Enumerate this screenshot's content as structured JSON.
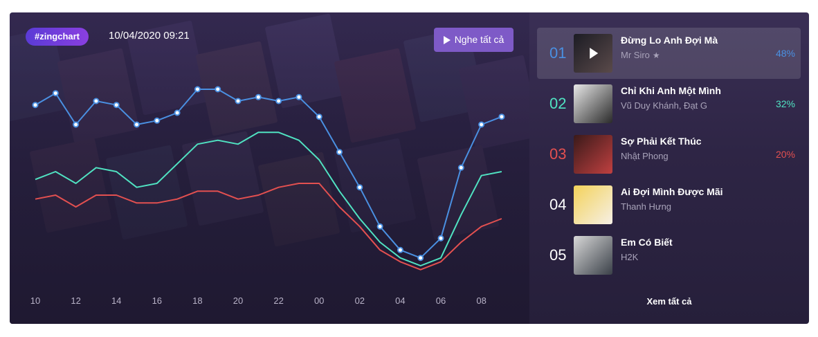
{
  "header": {
    "brand": "#zingchart",
    "datetime": "10/04/2020 09:21",
    "play_all_label": "Nghe tất cả"
  },
  "colors": {
    "series1": "#4a90e2",
    "series2": "#50e3c2",
    "series3": "#e35050"
  },
  "chart_data": {
    "type": "line",
    "x_ticks": [
      "10",
      "12",
      "14",
      "16",
      "18",
      "20",
      "22",
      "00",
      "02",
      "04",
      "06",
      "08"
    ],
    "series": [
      {
        "values": [
          77,
          80,
          72,
          78,
          77,
          72,
          73,
          75,
          81,
          81,
          78,
          79,
          78,
          79,
          74,
          65,
          56,
          46,
          40,
          38,
          43,
          61,
          72,
          74
        ],
        "color": "#4a90e2"
      },
      {
        "values": [
          58,
          60,
          57,
          61,
          60,
          56,
          57,
          62,
          67,
          68,
          67,
          70,
          70,
          68,
          63,
          55,
          48,
          42,
          38,
          36,
          38,
          49,
          59,
          60
        ],
        "color": "#50e3c2"
      },
      {
        "values": [
          53,
          54,
          51,
          54,
          54,
          52,
          52,
          53,
          55,
          55,
          53,
          54,
          56,
          57,
          57,
          51,
          46,
          40,
          37,
          35,
          37,
          42,
          46,
          48
        ],
        "color": "#e35050"
      }
    ]
  },
  "songs": [
    {
      "rank": "01",
      "rank_color": "#4a90e2",
      "title": "Đừng Lo Anh Đợi Mà",
      "artist": "Mr Siro",
      "has_star": true,
      "percent": "48%",
      "pct_color": "#4a90e2",
      "active": true,
      "thumb_from": "#1c1c24",
      "thumb_to": "#5a4a4a"
    },
    {
      "rank": "02",
      "rank_color": "#50e3c2",
      "title": "Chỉ Khi Anh Một Mình",
      "artist": "Vũ Duy Khánh, Đạt G",
      "has_star": false,
      "percent": "32%",
      "pct_color": "#50e3c2",
      "active": false,
      "thumb_from": "#e8e8e8",
      "thumb_to": "#2a2a2a"
    },
    {
      "rank": "03",
      "rank_color": "#e35050",
      "title": "Sợ Phải Kết Thúc",
      "artist": "Nhật Phong",
      "has_star": false,
      "percent": "20%",
      "pct_color": "#e35050",
      "active": false,
      "thumb_from": "#3a1a1a",
      "thumb_to": "#c04040"
    },
    {
      "rank": "04",
      "rank_color": "#ffffff",
      "title": "Ai Đợi Mình Được Mãi",
      "artist": "Thanh Hưng",
      "has_star": false,
      "percent": "",
      "pct_color": "#ffffff",
      "active": false,
      "thumb_from": "#f3d25a",
      "thumb_to": "#f6f0e6"
    },
    {
      "rank": "05",
      "rank_color": "#ffffff",
      "title": "Em Có Biết",
      "artist": "H2K",
      "has_star": false,
      "percent": "",
      "pct_color": "#ffffff",
      "active": false,
      "thumb_from": "#d8d8d8",
      "thumb_to": "#3a4048"
    }
  ],
  "footer": {
    "see_all_label": "Xem tất cả"
  }
}
